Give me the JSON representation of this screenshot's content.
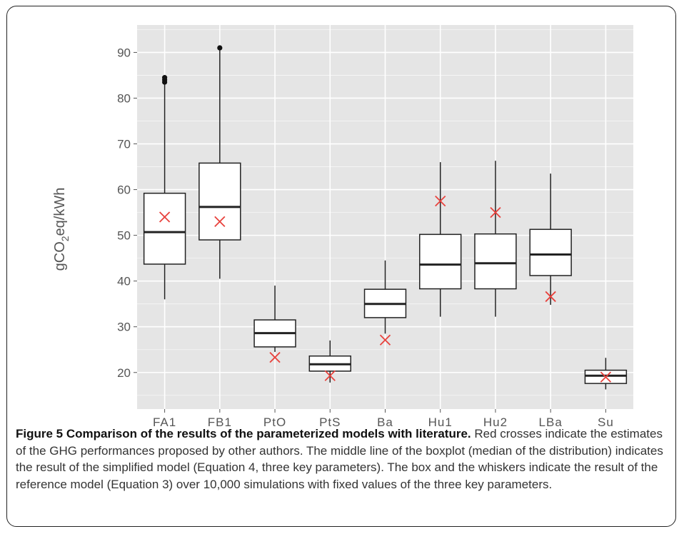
{
  "chart_data": {
    "type": "boxplot",
    "categories": [
      "FA1",
      "FB1",
      "PtO",
      "PtS",
      "Ba",
      "Hu1",
      "Hu2",
      "LBa",
      "Su"
    ],
    "ylabel": "gCO2eq/kWh",
    "ylabel_parts": {
      "prefix": "gCO",
      "subscript": "2",
      "suffix": "eq/kWh"
    },
    "yticks": [
      20,
      30,
      40,
      50,
      60,
      70,
      80,
      90
    ],
    "ylim": [
      12,
      96
    ],
    "grid": true,
    "boxes": [
      {
        "category": "FA1",
        "whisker_low": 36,
        "q1": 43.7,
        "median": 50.7,
        "q3": 59.2,
        "whisker_high": 83,
        "outliers": [
          83.5,
          84,
          84.5
        ],
        "reference": 54
      },
      {
        "category": "FB1",
        "whisker_low": 40.5,
        "q1": 49,
        "median": 56.2,
        "q3": 65.8,
        "whisker_high": 90.5,
        "outliers": [
          91
        ],
        "reference": 53
      },
      {
        "category": "PtO",
        "whisker_low": 24.5,
        "q1": 25.6,
        "median": 28.6,
        "q3": 31.5,
        "whisker_high": 39,
        "outliers": [],
        "reference": 23.3
      },
      {
        "category": "PtS",
        "whisker_low": 17.8,
        "q1": 20.3,
        "median": 21.8,
        "q3": 23.6,
        "whisker_high": 27,
        "outliers": [],
        "reference": 19.3
      },
      {
        "category": "Ba",
        "whisker_low": 28.5,
        "q1": 32,
        "median": 35,
        "q3": 38.2,
        "whisker_high": 44.5,
        "outliers": [],
        "reference": 27.1
      },
      {
        "category": "Hu1",
        "whisker_low": 32.2,
        "q1": 38.3,
        "median": 43.6,
        "q3": 50.2,
        "whisker_high": 66,
        "outliers": [],
        "reference": 57.5
      },
      {
        "category": "Hu2",
        "whisker_low": 32.2,
        "q1": 38.3,
        "median": 43.9,
        "q3": 50.3,
        "whisker_high": 66.3,
        "outliers": [],
        "reference": 55
      },
      {
        "category": "LBa",
        "whisker_low": 34.8,
        "q1": 41.2,
        "median": 45.8,
        "q3": 51.3,
        "whisker_high": 63.5,
        "outliers": [],
        "reference": 36.6
      },
      {
        "category": "Su",
        "whisker_low": 16.3,
        "q1": 17.6,
        "median": 19.3,
        "q3": 20.5,
        "whisker_high": 23.2,
        "outliers": [],
        "reference": 19
      }
    ],
    "reference_marker": "x",
    "colors": {
      "panel_bg": "#e5e5e5",
      "grid": "#ffffff",
      "box_fill": "#ffffff",
      "box_line": "#222222",
      "reference": "#e8413c"
    }
  },
  "caption": {
    "bold": "Figure 5 Comparison of the results of the parameterized models with literature.",
    "text": " Red crosses indicate the estimates of the GHG performances proposed by other authors. The middle line of the boxplot (median of the distribution) indicates the result of the simplified model (Equation 4, three key parameters). The box and the whiskers indicate the result of the reference model (Equation 3) over 10,000 simulations with fixed values of the three key parameters."
  }
}
